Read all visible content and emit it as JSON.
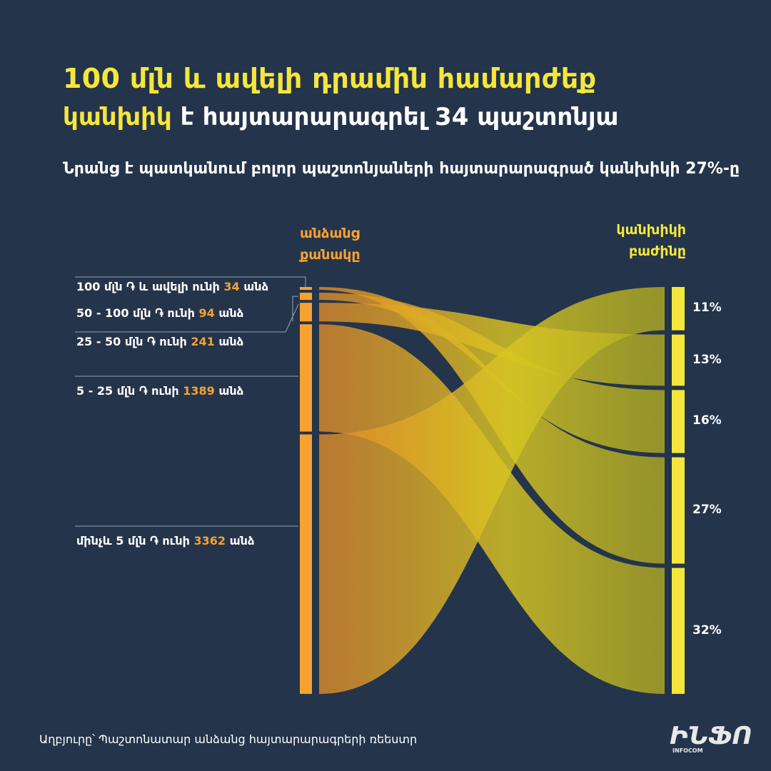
{
  "title": {
    "line1": "100 մլն և ավելի դրամին համարժեք",
    "line2_highlight": "կանխիկ",
    "line2_rest": " է հայտարարագրել 34 պաշտոնյա"
  },
  "subtitle": "Նրանց է պատկանում բոլոր պաշտոնյաների հայտարարագրած կանխիկի 27%-ը",
  "columns": {
    "left": [
      "անձանց",
      "քանակը"
    ],
    "right": [
      "կանխիկի",
      "բաժինը"
    ]
  },
  "source": "Աղբյուրը՝ Պաշտոնատար անձանց հայտարարագրերի ռեեստր",
  "logo": {
    "text": "ԻՆՖՈ",
    "sub": "INFOCOM"
  },
  "colors": {
    "background": "#24344b",
    "left_bar": "#f6a230",
    "right_bar": "#f5e63c",
    "title_accent": "#f5e63c"
  },
  "chart_data": {
    "type": "sankey",
    "title": "100 մլն և ավելի դրամին համարժեք կանխիկ է հայտարարագրել 34 պաշտոնյա",
    "groups": [
      {
        "prefix": "100 մլն ֏ և ավելի ունի ",
        "count": 34,
        "suffix": " անձ",
        "cash_share": 27,
        "cash_label": "27%"
      },
      {
        "prefix": "50 - 100 մլն ֏ ունի ",
        "count": 94,
        "suffix": " անձ",
        "cash_share": 16,
        "cash_label": "16%"
      },
      {
        "prefix": "25 - 50 մլն ֏ ունի ",
        "count": 241,
        "suffix": " անձ",
        "cash_share": 13,
        "cash_label": "13%"
      },
      {
        "prefix": "5 - 25 մլն ֏ ունի ",
        "count": 1389,
        "suffix": " անձ",
        "cash_share": 32,
        "cash_label": "32%"
      },
      {
        "prefix": "մինչև 5 մլն ֏ ունի ",
        "count": 3362,
        "suffix": " անձ",
        "cash_share": 11,
        "cash_label": "11%"
      }
    ],
    "right_order": [
      4,
      2,
      1,
      0,
      3
    ]
  }
}
